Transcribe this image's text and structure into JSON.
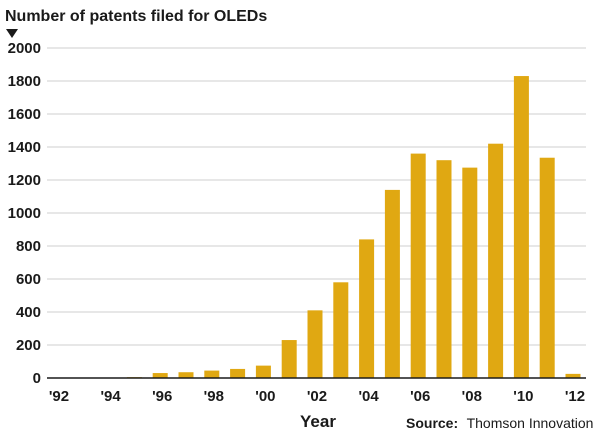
{
  "chart_data": {
    "type": "bar",
    "title": "Number of patents filed for OLEDs",
    "xlabel": "Year",
    "ylabel": "",
    "ylim": [
      0,
      2000
    ],
    "yticks": [
      "0",
      "200",
      "400",
      "600",
      "800",
      "1000",
      "1200",
      "1400",
      "1600",
      "1800",
      "2000"
    ],
    "xtick_labels": [
      "'92",
      "'94",
      "'96",
      "'98",
      "'00",
      "'02",
      "'04",
      "'06",
      "'08",
      "'10",
      "'12"
    ],
    "categories": [
      "1992",
      "1993",
      "1994",
      "1995",
      "1996",
      "1997",
      "1998",
      "1999",
      "2000",
      "2001",
      "2002",
      "2003",
      "2004",
      "2005",
      "2006",
      "2007",
      "2008",
      "2009",
      "2010",
      "2011",
      "2012"
    ],
    "values": [
      0,
      0,
      0,
      5,
      30,
      35,
      45,
      55,
      75,
      230,
      410,
      580,
      840,
      1140,
      1360,
      1320,
      1275,
      1420,
      1830,
      1335,
      25
    ],
    "grid": true,
    "bar_color": "#e0a812"
  },
  "source": {
    "label": "Source:",
    "text": "Thomson Innovation"
  }
}
